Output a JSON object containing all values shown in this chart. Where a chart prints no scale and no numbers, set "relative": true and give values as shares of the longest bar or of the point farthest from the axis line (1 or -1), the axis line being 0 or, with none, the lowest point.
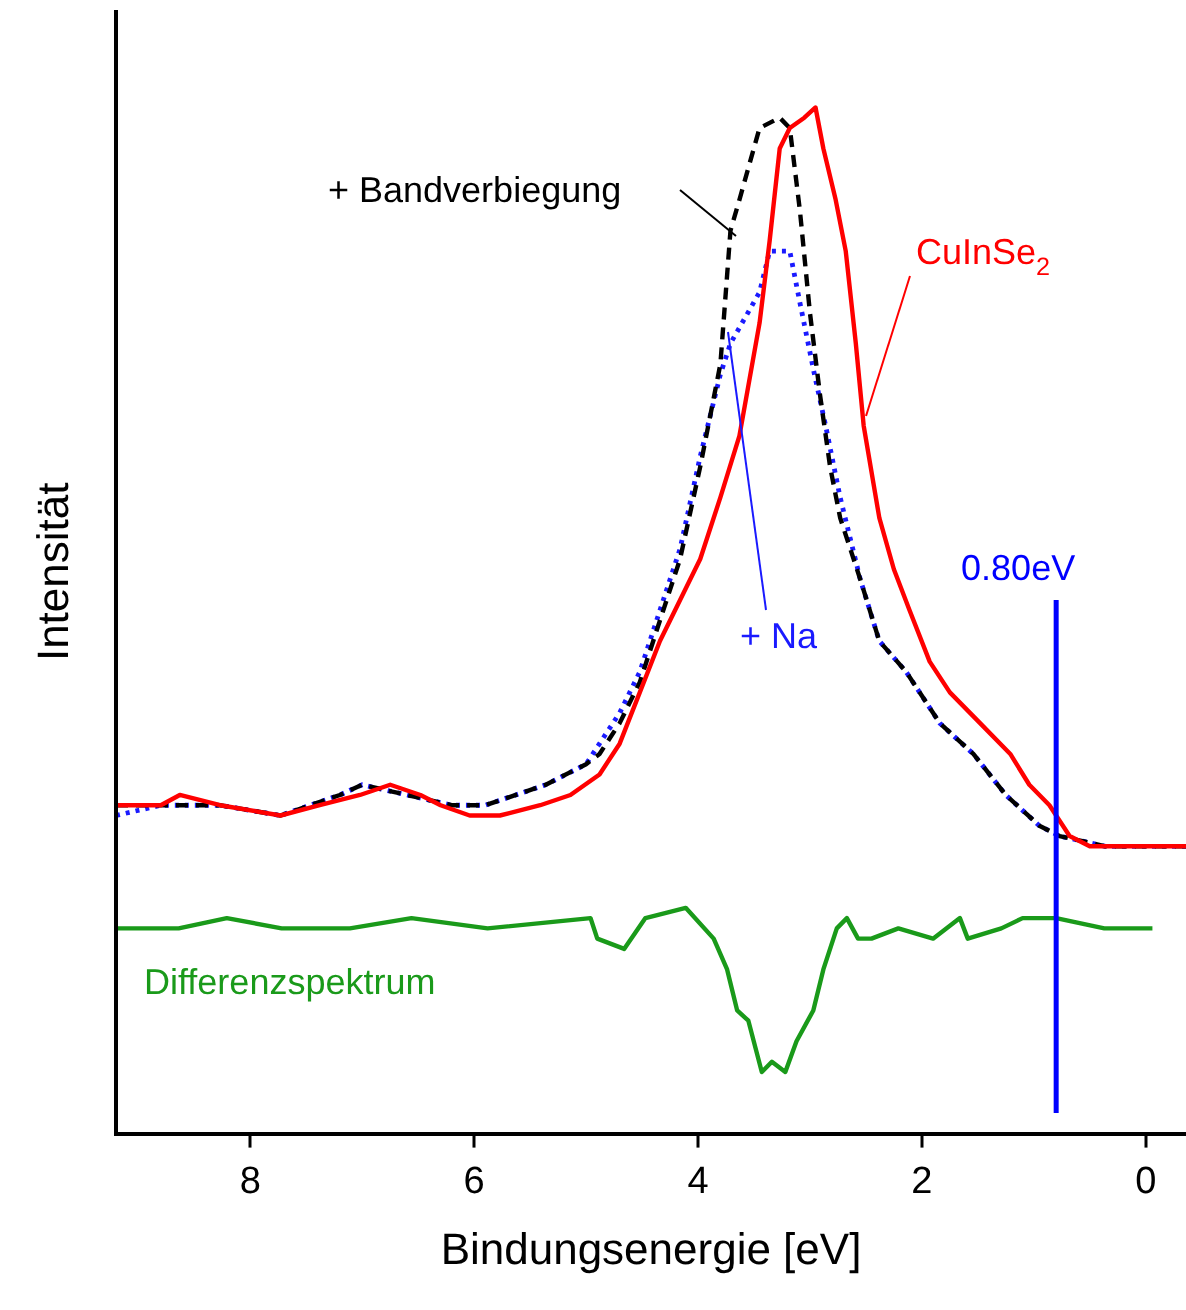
{
  "chart_data": {
    "type": "line",
    "xlabel": "Bindungsenergie [eV]",
    "ylabel": "Intensität",
    "relative": true,
    "xlim": [
      9.2,
      -0.36
    ],
    "xticks": [
      8,
      6,
      4,
      2,
      0
    ],
    "grid": false,
    "marker": "none",
    "series": [
      {
        "name": "CuInSe$_{2}$",
        "color": "#ff0000",
        "line_style": "solid",
        "x": [
          9.2,
          8.8,
          8.63,
          8.27,
          7.73,
          7.38,
          7.02,
          6.75,
          6.48,
          6.3,
          6.04,
          5.77,
          5.41,
          5.14,
          4.88,
          4.7,
          4.52,
          4.34,
          4.16,
          3.98,
          3.8,
          3.63,
          3.45,
          3.36,
          3.27,
          3.18,
          3.05,
          2.95,
          2.88,
          2.77,
          2.68,
          2.59,
          2.52,
          2.38,
          2.25,
          2.11,
          1.93,
          1.75,
          1.48,
          1.21,
          1.04,
          0.86,
          0.68,
          0.5,
          0.23,
          -0.04,
          -0.36
        ],
        "values": [
          0.32,
          0.32,
          0.33,
          0.32,
          0.31,
          0.32,
          0.33,
          0.34,
          0.33,
          0.32,
          0.31,
          0.31,
          0.32,
          0.33,
          0.35,
          0.38,
          0.43,
          0.48,
          0.52,
          0.56,
          0.62,
          0.68,
          0.79,
          0.87,
          0.96,
          0.98,
          0.99,
          1.0,
          0.96,
          0.91,
          0.86,
          0.77,
          0.69,
          0.6,
          0.55,
          0.51,
          0.46,
          0.43,
          0.4,
          0.37,
          0.34,
          0.32,
          0.29,
          0.28,
          0.28,
          0.28,
          0.28
        ]
      },
      {
        "name": "+ Bandverbiegung",
        "color": "#000000",
        "line_style": "dashed",
        "x": [
          9.2,
          8.8,
          8.27,
          7.73,
          7.2,
          7.0,
          6.6,
          6.2,
          5.9,
          5.36,
          5.0,
          4.88,
          4.7,
          4.52,
          4.34,
          4.16,
          3.98,
          3.8,
          3.71,
          3.63,
          3.45,
          3.27,
          3.18,
          3.09,
          3.0,
          2.91,
          2.82,
          2.73,
          2.55,
          2.38,
          2.14,
          1.84,
          1.54,
          1.25,
          0.95,
          0.77,
          0.36,
          -0.36
        ],
        "values": [
          0.32,
          0.32,
          0.32,
          0.31,
          0.33,
          0.34,
          0.33,
          0.32,
          0.32,
          0.34,
          0.36,
          0.37,
          0.4,
          0.44,
          0.5,
          0.56,
          0.65,
          0.75,
          0.88,
          0.91,
          0.98,
          0.99,
          0.98,
          0.9,
          0.8,
          0.72,
          0.65,
          0.6,
          0.54,
          0.48,
          0.45,
          0.4,
          0.37,
          0.33,
          0.3,
          0.29,
          0.28,
          0.28
        ]
      },
      {
        "name": "+ Na",
        "color": "#1a1aff",
        "line_style": "dotted",
        "x": [
          9.2,
          8.8,
          8.27,
          7.73,
          7.2,
          7.0,
          6.6,
          6.2,
          5.9,
          5.36,
          5.0,
          4.88,
          4.7,
          4.52,
          4.34,
          4.16,
          3.98,
          3.8,
          3.71,
          3.45,
          3.36,
          3.18,
          3.09,
          2.96,
          2.86,
          2.73,
          2.55,
          2.38,
          2.14,
          1.84,
          1.54,
          1.25,
          0.95,
          0.77,
          0.36,
          -0.36
        ],
        "values": [
          0.31,
          0.32,
          0.32,
          0.31,
          0.33,
          0.34,
          0.33,
          0.32,
          0.32,
          0.34,
          0.36,
          0.38,
          0.41,
          0.45,
          0.51,
          0.57,
          0.66,
          0.74,
          0.77,
          0.82,
          0.86,
          0.86,
          0.81,
          0.74,
          0.69,
          0.62,
          0.54,
          0.48,
          0.45,
          0.4,
          0.37,
          0.33,
          0.3,
          0.29,
          0.28,
          0.28
        ]
      },
      {
        "name": "Differenzspektrum",
        "color": "#1a9a1a",
        "line_style": "solid",
        "x": [
          9.19,
          8.64,
          8.21,
          7.72,
          7.11,
          6.56,
          5.88,
          4.96,
          4.9,
          4.66,
          4.47,
          4.11,
          3.86,
          3.74,
          3.65,
          3.55,
          3.43,
          3.34,
          3.22,
          3.12,
          2.97,
          2.88,
          2.76,
          2.67,
          2.57,
          2.45,
          2.21,
          1.9,
          1.66,
          1.59,
          1.29,
          1.1,
          0.8,
          0.37,
          -0.06
        ],
        "values": [
          0.2,
          0.2,
          0.21,
          0.2,
          0.2,
          0.21,
          0.2,
          0.21,
          0.19,
          0.18,
          0.21,
          0.22,
          0.19,
          0.16,
          0.12,
          0.11,
          0.06,
          0.07,
          0.06,
          0.09,
          0.12,
          0.16,
          0.2,
          0.21,
          0.19,
          0.19,
          0.2,
          0.19,
          0.21,
          0.19,
          0.2,
          0.21,
          0.21,
          0.2,
          0.2
        ]
      }
    ],
    "ref_lines": [
      {
        "axis": "x",
        "value": 0.8,
        "label": "0.80eV",
        "color": "#0000ff"
      }
    ]
  }
}
